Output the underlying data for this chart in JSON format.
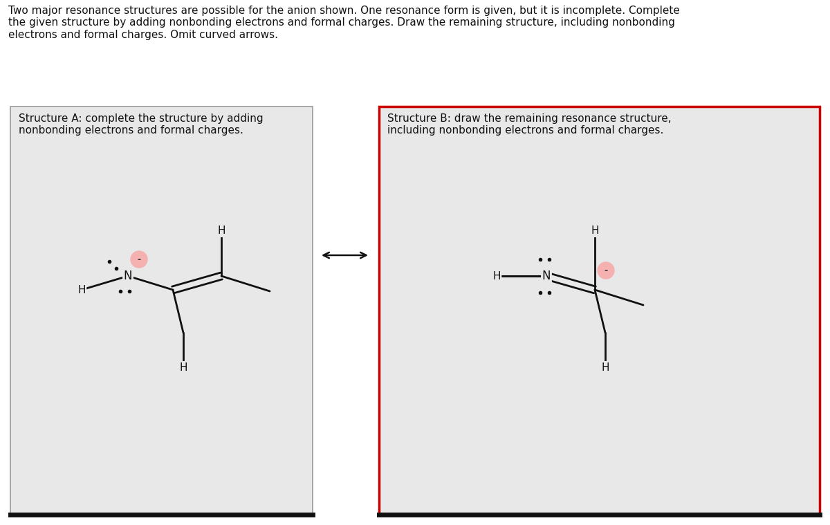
{
  "bg_color": "#ffffff",
  "box_bg": "#e8e8e8",
  "title_text": "Two major resonance structures are possible for the anion shown. One resonance form is given, but it is incomplete. Complete\nthe given structure by adding nonbonding electrons and formal charges. Draw the remaining structure, including nonbonding\nelectrons and formal charges. Omit curved arrows.",
  "box_A_label": "Structure A: complete the structure by adding\nnonbonding electrons and formal charges.",
  "box_B_label": "Structure B: draw the remaining resonance structure,\nincluding nonbonding electrons and formal charges.",
  "box_A_border": "#999999",
  "box_B_border": "#cc0000",
  "lone_pair_color": "#111111",
  "charge_circle_color": "#f5b0b0",
  "charge_text_color": "#333333",
  "bond_color": "#111111"
}
